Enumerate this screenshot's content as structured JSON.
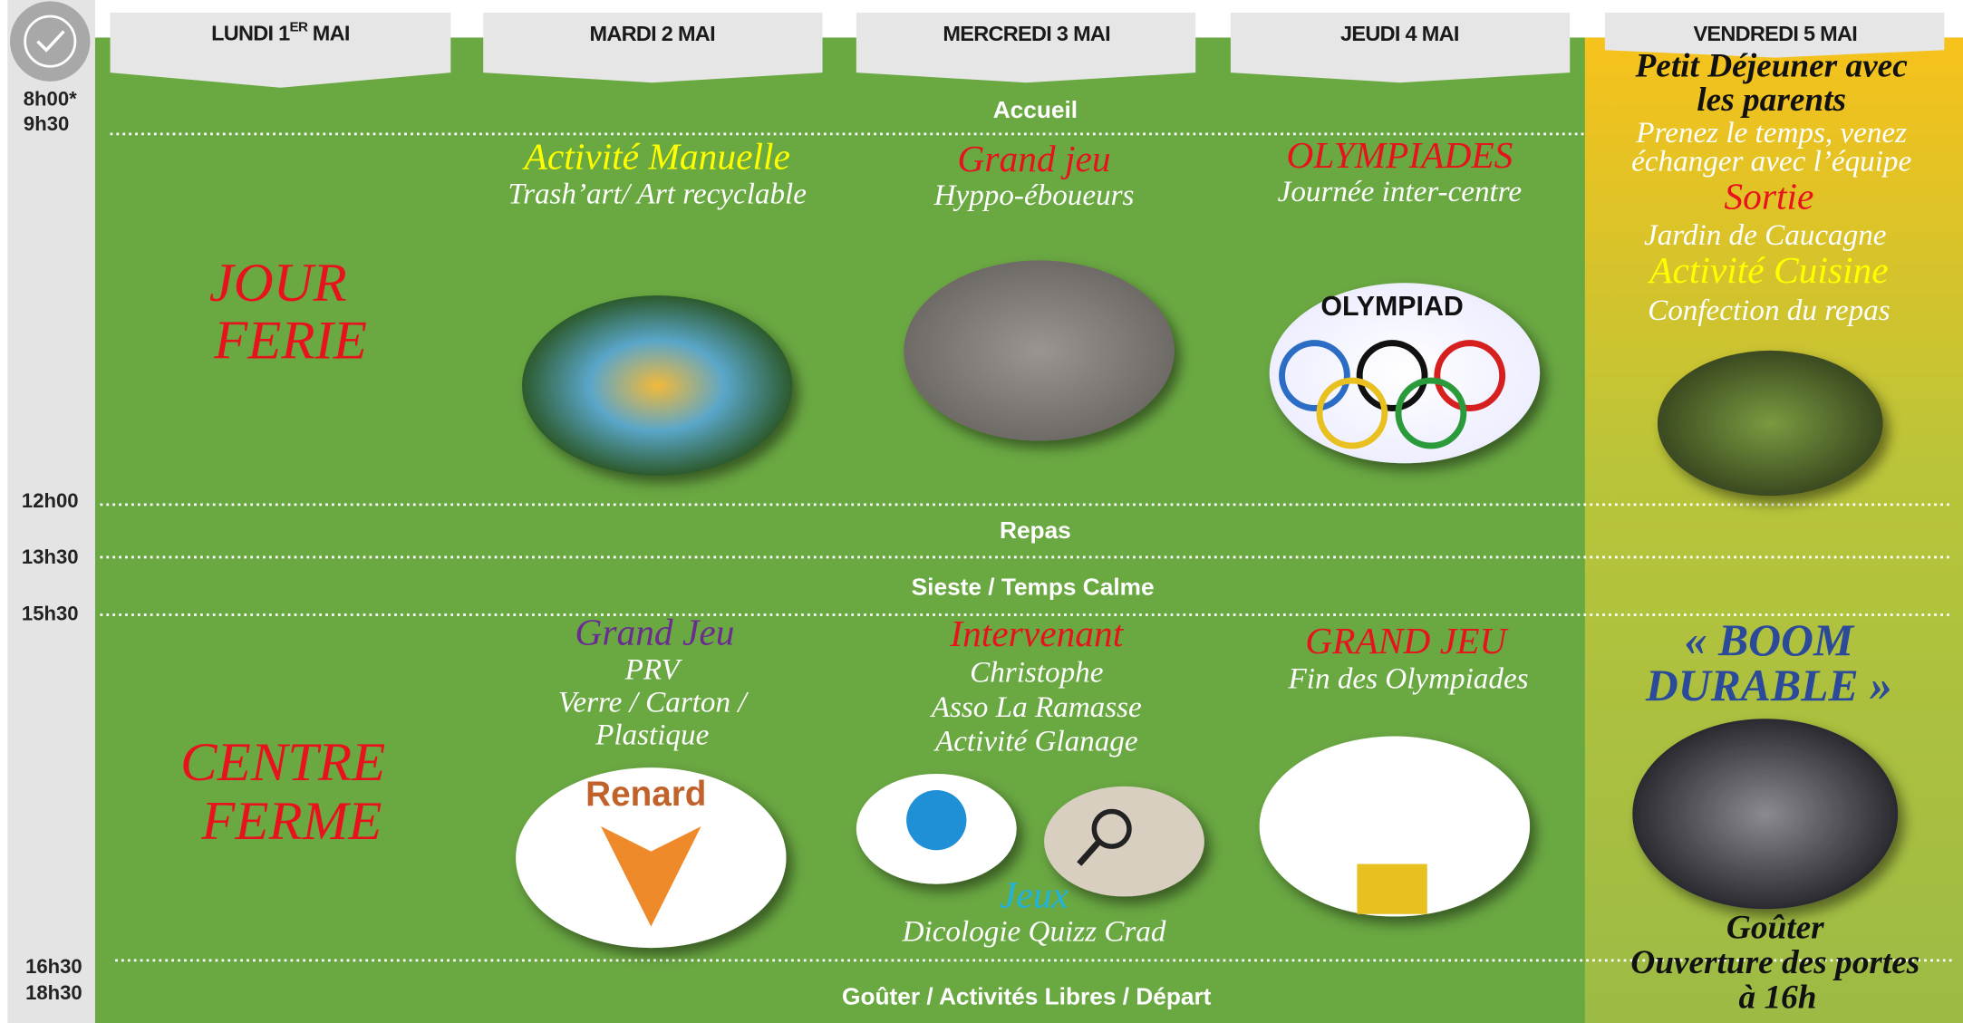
{
  "header": {
    "days": [
      {
        "main": "LUNDI 1",
        "sup": "ER",
        "end": "MAI"
      },
      {
        "main": "MARDI 2 MAI"
      },
      {
        "main": "MERCREDI 3 MAI"
      },
      {
        "main": "JEUDI 4 MAI"
      },
      {
        "main": "VENDREDI 5 MAI"
      }
    ]
  },
  "times": [
    "8h00*",
    "9h30",
    "12h00",
    "13h30",
    "15h30",
    "16h30",
    "18h30"
  ],
  "shared": [
    "Accueil",
    "Repas",
    "Sieste / Temps Calme",
    "Goûter / Activités Libres / Départ"
  ],
  "monday": {
    "morning": [
      "JOUR",
      "FERIE"
    ],
    "afternoon": [
      "CENTRE",
      "FERME"
    ]
  },
  "tuesday": {
    "morning": {
      "title": "Activité Manuelle",
      "lines": [
        "Trash’art/ Art recyclable"
      ]
    },
    "afternoon": {
      "title": "Grand Jeu",
      "lines": [
        "PRV",
        "Verre / Carton /",
        "Plastique"
      ],
      "image_text": "Renard"
    }
  },
  "wednesday": {
    "morning": {
      "title": "Grand jeu",
      "lines": [
        "Hyppo-éboueurs"
      ]
    },
    "afternoon": {
      "title": "Intervenant",
      "lines": [
        "Christophe",
        "Asso La Ramasse",
        "Activité Glanage"
      ],
      "title2": "Jeux",
      "lines2": [
        "Dicologie Quizz Crad"
      ]
    }
  },
  "thursday": {
    "morning": {
      "title": "OLYMPIADES",
      "lines": [
        "Journée inter-centre"
      ],
      "image_text": "OLYMPIAD"
    },
    "afternoon": {
      "title": "GRAND JEU",
      "lines": [
        "Fin des Olympiades"
      ]
    }
  },
  "friday": {
    "morning": {
      "title": [
        "Petit Déjeuner avec",
        "les parents"
      ],
      "lines": [
        "Prenez le temps, venez",
        "échanger avec l’équipe"
      ],
      "title2": "Sortie",
      "lines2": [
        "Jardin de Caucagne"
      ],
      "title3": "Activité Cuisine",
      "lines3": [
        "Confection du repas"
      ]
    },
    "afternoon": {
      "title": [
        "« BOOM",
        "DURABLE »"
      ],
      "lines": [
        "Goûter",
        "Ouverture des portes",
        "à 16h"
      ]
    }
  }
}
